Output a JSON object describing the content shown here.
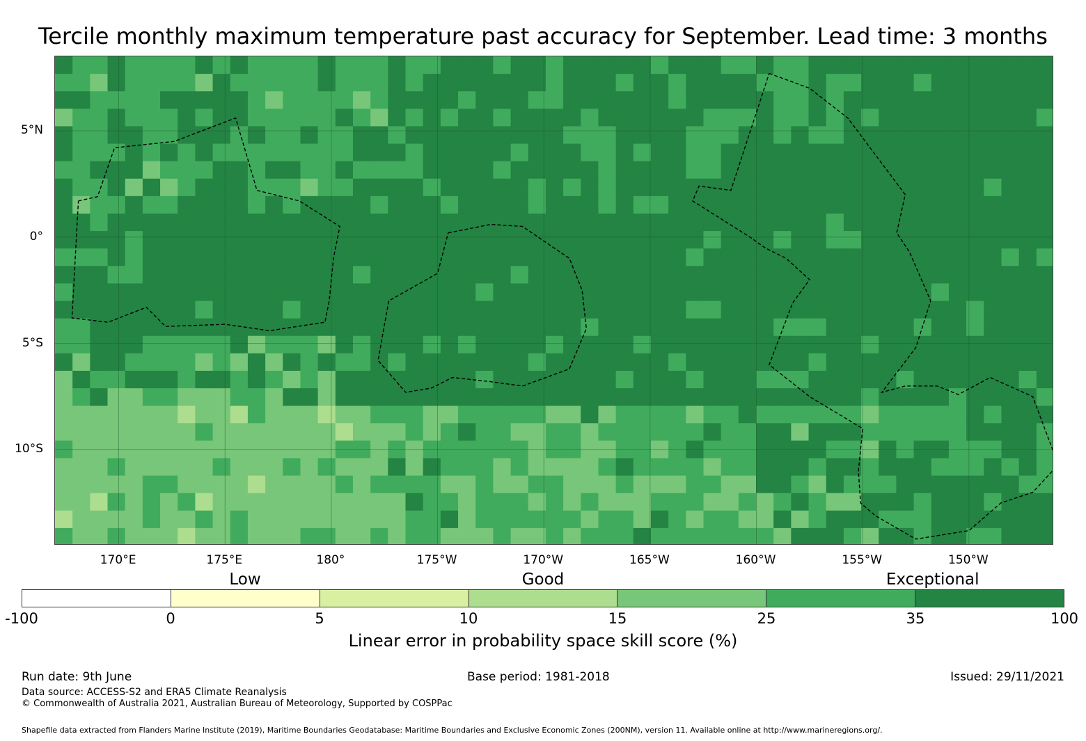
{
  "title": "Tercile monthly maximum temperature past accuracy for September. Lead time: 3 months",
  "map": {
    "lon_range": [
      -193,
      -146
    ],
    "lat_range": [
      -14.5,
      8.5
    ],
    "lat_ticks": [
      {
        "value": 5,
        "label": "5°N"
      },
      {
        "value": 0,
        "label": "0°"
      },
      {
        "value": -5,
        "label": "5°S"
      },
      {
        "value": -10,
        "label": "10°S"
      }
    ],
    "lon_ticks": [
      {
        "value": -190,
        "label": "170°E"
      },
      {
        "value": -185,
        "label": "175°E"
      },
      {
        "value": -180,
        "label": "180°"
      },
      {
        "value": -175,
        "label": "175°W"
      },
      {
        "value": -170,
        "label": "170°W"
      },
      {
        "value": -165,
        "label": "165°W"
      },
      {
        "value": -160,
        "label": "160°W"
      },
      {
        "value": -155,
        "label": "155°W"
      },
      {
        "value": -150,
        "label": "150°W"
      }
    ],
    "eez_outlines": [
      [
        [
          -191.9,
          1.7
        ],
        [
          -191.0,
          1.9
        ],
        [
          -190.2,
          4.2
        ],
        [
          -187.4,
          4.5
        ],
        [
          -184.5,
          5.6
        ],
        [
          -183.5,
          2.2
        ],
        [
          -181.5,
          1.7
        ],
        [
          -179.6,
          0.5
        ],
        [
          -179.9,
          -1.0
        ],
        [
          -180.1,
          -3.0
        ],
        [
          -180.3,
          -4.0
        ],
        [
          -182.9,
          -4.4
        ],
        [
          -185.0,
          -4.1
        ],
        [
          -187.8,
          -4.2
        ],
        [
          -188.7,
          -3.3
        ],
        [
          -190.5,
          -4.0
        ],
        [
          -192.2,
          -3.8
        ],
        [
          -191.9,
          1.7
        ]
      ],
      [
        [
          -174.5,
          0.2
        ],
        [
          -172.5,
          0.6
        ],
        [
          -171.0,
          0.5
        ],
        [
          -168.8,
          -1.0
        ],
        [
          -168.2,
          -2.5
        ],
        [
          -168.0,
          -4.3
        ],
        [
          -168.8,
          -6.2
        ],
        [
          -171.0,
          -7.0
        ],
        [
          -172.5,
          -6.8
        ],
        [
          -174.3,
          -6.6
        ],
        [
          -175.3,
          -7.1
        ],
        [
          -176.5,
          -7.3
        ],
        [
          -177.8,
          -5.8
        ],
        [
          -177.3,
          -3.0
        ],
        [
          -175.0,
          -1.7
        ],
        [
          -174.5,
          0.2
        ]
      ],
      [
        [
          -159.4,
          7.7
        ],
        [
          -157.5,
          7.0
        ],
        [
          -155.7,
          5.6
        ],
        [
          -153.0,
          2.0
        ],
        [
          -153.4,
          0.2
        ],
        [
          -152.8,
          -0.7
        ],
        [
          -151.8,
          -3.0
        ],
        [
          -152.5,
          -5.2
        ],
        [
          -154.1,
          -7.3
        ],
        [
          -153.0,
          -7.0
        ],
        [
          -151.5,
          -7.0
        ],
        [
          -150.5,
          -7.4
        ],
        [
          -149.0,
          -6.6
        ],
        [
          -147.0,
          -7.5
        ],
        [
          -145.8,
          -10.7
        ],
        [
          -147.0,
          -12.0
        ],
        [
          -148.5,
          -12.5
        ],
        [
          -150.0,
          -13.8
        ],
        [
          -152.5,
          -14.2
        ],
        [
          -154.4,
          -13.1
        ],
        [
          -155.1,
          -12.5
        ],
        [
          -155.2,
          -11.0
        ],
        [
          -155.0,
          -9.0
        ],
        [
          -157.5,
          -7.5
        ],
        [
          -159.4,
          -6.0
        ],
        [
          -158.3,
          -3.1
        ],
        [
          -157.5,
          -2.0
        ],
        [
          -158.6,
          -1.0
        ],
        [
          -159.6,
          -0.5
        ],
        [
          -160.3,
          0.0
        ],
        [
          -163.0,
          1.7
        ],
        [
          -162.7,
          2.4
        ],
        [
          -161.2,
          2.2
        ],
        [
          -159.4,
          7.7
        ]
      ]
    ]
  },
  "colorbar": {
    "category_labels": [
      {
        "value": 2.5,
        "label": "Low"
      },
      {
        "value": 12.5,
        "label": "Good"
      },
      {
        "value": 42.5,
        "label": "Exceptional"
      }
    ],
    "boundaries": [
      "-100",
      "0",
      "5",
      "10",
      "15",
      "25",
      "35",
      "100"
    ],
    "colors": [
      "#ffffff",
      "#ffffcc",
      "#d9f0a3",
      "#addd8e",
      "#78c679",
      "#41ab5d",
      "#238443"
    ],
    "label": "Linear error in probability space skill score (%)"
  },
  "chart_data": {
    "type": "heatmap",
    "title": "Tercile monthly maximum temperature past accuracy for September. Lead time: 3 months",
    "xlabel": "",
    "ylabel": "",
    "x_range": [
      -193,
      -146
    ],
    "y_range": [
      -14.5,
      8.5
    ],
    "colorbar_label": "Linear error in probability space skill score (%)",
    "value_bins": [
      -100,
      0,
      5,
      10,
      15,
      25,
      35,
      100
    ],
    "regions": [
      {
        "lon": [
          -193,
          -146
        ],
        "lat": [
          -5,
          8.5
        ],
        "category": "35 to 100",
        "note": "mostly"
      },
      {
        "lon": [
          -193,
          -175
        ],
        "lat": [
          2,
          8.5
        ],
        "category": "25 to 35",
        "note": "patchy"
      },
      {
        "lon": [
          -160,
          -146
        ],
        "lat": [
          -14.5,
          -5
        ],
        "category": "35 to 100",
        "note": "mostly"
      },
      {
        "lon": [
          -193,
          -178
        ],
        "lat": [
          -14.5,
          -8
        ],
        "category": "15 to 25",
        "note": "mostly"
      },
      {
        "lon": [
          -178,
          -157
        ],
        "lat": [
          -14.5,
          -9
        ],
        "category": "25 to 35",
        "note": "mixed"
      }
    ]
  },
  "footer": {
    "run_date": "Run date: 9th June",
    "base_period": "Base period: 1981-2018",
    "issued": "Issued: 29/11/2021",
    "data_source": "Data source: ACCESS-S2 and ERA5 Climate Reanalysis",
    "copyright": "© Commonwealth of Australia 2021, Australian Bureau of Meteorology, Supported by COSPPac",
    "shapefile": "Shapefile data extracted from Flanders Marine Institute (2019), Maritime Boundaries Geodatabase: Maritime Boundaries and Exclusive Economic Zones (200NM), version 11. Available online at http://www.marineregions.org/."
  }
}
